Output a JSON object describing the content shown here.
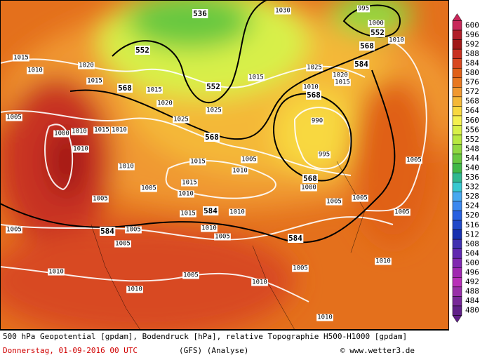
{
  "map": {
    "isobar_labels": [
      "1015",
      "1010",
      "1005",
      "1000",
      "1010",
      "1010",
      "1010",
      "1005",
      "1005",
      "1005",
      "1005",
      "1005",
      "1010",
      "1010",
      "1005",
      "1010",
      "1010",
      "1005",
      "1010",
      "1005",
      "1005",
      "1005",
      "1000",
      "990",
      "995",
      "1005",
      "1005",
      "1010",
      "1015",
      "1015",
      "1010",
      "1015",
      "1010",
      "1005",
      "1010",
      "1015",
      "1020",
      "1025",
      "1025",
      "1015",
      "1025",
      "1020",
      "1015",
      "1010",
      "1030",
      "995",
      "1000",
      "1010",
      "1020",
      "1015",
      "1015",
      "1010"
    ],
    "geopotential_labels": [
      "552",
      "536",
      "552",
      "568",
      "584",
      "568",
      "552",
      "568",
      "568",
      "568",
      "584",
      "584",
      "584"
    ],
    "scale": {
      "values": [
        600,
        596,
        592,
        588,
        584,
        580,
        576,
        572,
        568,
        564,
        560,
        556,
        552,
        548,
        544,
        540,
        536,
        532,
        528,
        524,
        520,
        516,
        512,
        508,
        504,
        500,
        496,
        492,
        488,
        484,
        480
      ],
      "colors": [
        "#c8285a",
        "#b01e28",
        "#a01818",
        "#c83020",
        "#d84820",
        "#e06018",
        "#e87820",
        "#f09830",
        "#f4b838",
        "#f8d840",
        "#f4f050",
        "#d8f048",
        "#b8e840",
        "#90d840",
        "#68c840",
        "#40b848",
        "#30b890",
        "#38c8d0",
        "#48a8f0",
        "#3c88f0",
        "#2860e0",
        "#2048c8",
        "#1830b0",
        "#4030b0",
        "#6028b0",
        "#8028b0",
        "#a028b0",
        "#b830b8",
        "#9830a8",
        "#782898",
        "#602088"
      ]
    },
    "footer": {
      "line1": "500 hPa Geopotential [gpdam], Bodendruck [hPa], relative Topographie H500-H1000 [gpdam]",
      "date": "Donnerstag, 01-09-2016  00 UTC",
      "model": "(GFS)  (Analyse)",
      "credit": "© www.wetter3.de"
    }
  }
}
